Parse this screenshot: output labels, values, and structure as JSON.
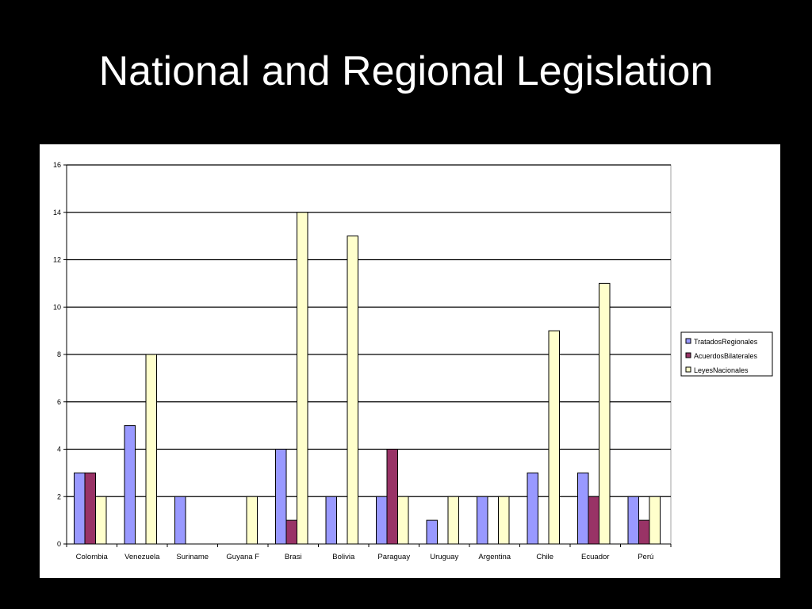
{
  "slide": {
    "title": "National and Regional Legislation"
  },
  "colors": {
    "background": "#000000",
    "panel": "#ffffff",
    "series": [
      "#9999ff",
      "#993366",
      "#ffffcc"
    ]
  },
  "chart_data": {
    "type": "bar",
    "title": "",
    "xlabel": "",
    "ylabel": "",
    "ylim": [
      0,
      16
    ],
    "yticks": [
      0,
      2,
      4,
      6,
      8,
      10,
      12,
      14,
      16
    ],
    "grid": true,
    "legend_position": "right",
    "categories": [
      "Colombia",
      "Venezuela",
      "Suriname",
      "Guyana F",
      "Brasi",
      "Bolivia",
      "Paraguay",
      "Uruguay",
      "Argentina",
      "Chile",
      "Ecuador",
      "Perú"
    ],
    "series": [
      {
        "name": "TratadosRegionales",
        "color": "#9999ff",
        "values": [
          3,
          5,
          2,
          0,
          4,
          2,
          2,
          1,
          2,
          3,
          3,
          2
        ]
      },
      {
        "name": "AcuerdosBilaterales",
        "color": "#993366",
        "values": [
          3,
          0,
          0,
          0,
          1,
          0,
          4,
          0,
          0,
          0,
          2,
          1
        ]
      },
      {
        "name": "LeyesNacionales",
        "color": "#ffffcc",
        "values": [
          2,
          8,
          0,
          2,
          14,
          13,
          2,
          2,
          2,
          9,
          11,
          2
        ]
      }
    ]
  }
}
